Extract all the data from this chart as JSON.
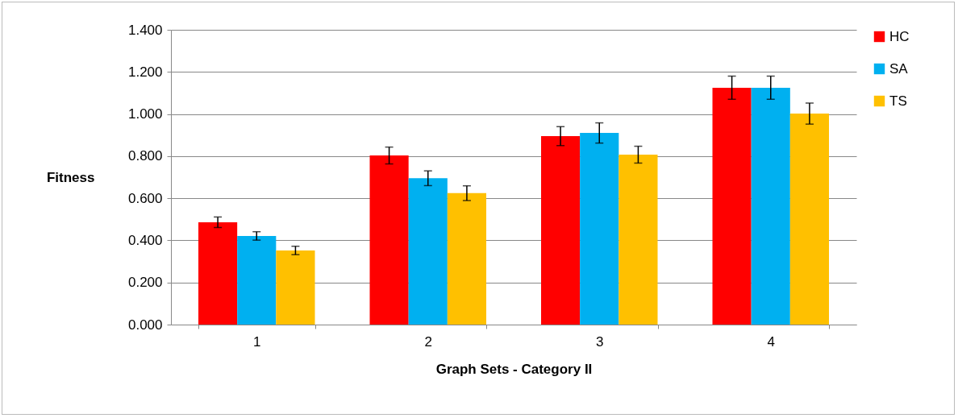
{
  "chart_data": {
    "type": "bar",
    "xlabel": "Graph Sets - Category II",
    "ylabel": "Fitness",
    "categories": [
      "1",
      "2",
      "3",
      "4"
    ],
    "series": [
      {
        "name": "HC",
        "color": "#ff0000",
        "values": [
          0.486,
          0.803,
          0.895,
          1.125
        ],
        "errors": [
          0.025,
          0.04,
          0.045,
          0.055
        ]
      },
      {
        "name": "SA",
        "color": "#00b0f0",
        "values": [
          0.421,
          0.695,
          0.91,
          1.125
        ],
        "errors": [
          0.02,
          0.035,
          0.048,
          0.055
        ]
      },
      {
        "name": "TS",
        "color": "#ffc000",
        "values": [
          0.352,
          0.624,
          0.807,
          1.002
        ],
        "errors": [
          0.02,
          0.035,
          0.04,
          0.05
        ]
      }
    ],
    "ylim": [
      0,
      1.4
    ],
    "yticks": [
      {
        "value": 0,
        "label": "0.000"
      },
      {
        "value": 0.2,
        "label": "0.200"
      },
      {
        "value": 0.4,
        "label": "0.400"
      },
      {
        "value": 0.6,
        "label": "0.600"
      },
      {
        "value": 0.8,
        "label": "0.800"
      },
      {
        "value": 1,
        "label": "1.000"
      },
      {
        "value": 1.2,
        "label": "1.200"
      },
      {
        "value": 1.4,
        "label": "1.400"
      }
    ],
    "grid": "y",
    "legend": "right"
  }
}
